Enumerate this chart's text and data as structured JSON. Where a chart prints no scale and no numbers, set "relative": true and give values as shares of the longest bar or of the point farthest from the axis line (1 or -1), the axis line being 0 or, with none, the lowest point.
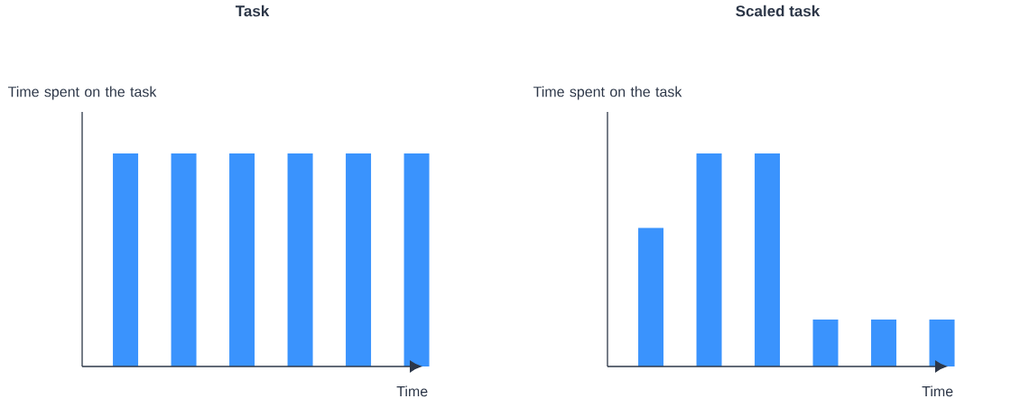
{
  "chart_data": [
    {
      "type": "bar",
      "title": "Task",
      "ylabel": "Time spent on the task",
      "xlabel": "Time",
      "relative": true,
      "color": "#3a93fd",
      "categories": [
        null,
        null,
        null,
        null,
        null,
        null
      ],
      "values": [
        1,
        1,
        1,
        1,
        1,
        1
      ]
    },
    {
      "type": "bar",
      "title": "Scaled task",
      "ylabel": "Time spent on the task",
      "xlabel": "Time",
      "relative": true,
      "color": "#3a93fd",
      "categories": [
        null,
        null,
        null,
        null,
        null,
        null
      ],
      "values": [
        0.65,
        1,
        1,
        0.22,
        0.22,
        0.22
      ]
    }
  ]
}
